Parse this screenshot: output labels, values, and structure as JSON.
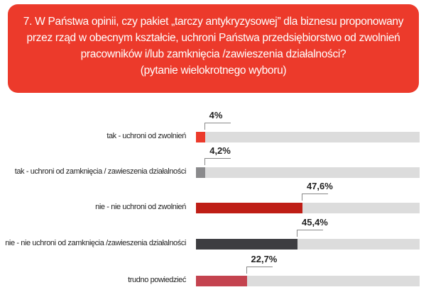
{
  "header": {
    "lines": [
      "7. W Państwa opinii, czy pakiet „tarczy antykryzysowej” dla biznesu proponowany",
      "przez rząd w obecnym kształcie, uchroni Państwa przedsiębiorstwo od zwolnień",
      "pracowników i/lub zamknięcia /zawieszenia działalności?",
      "(pytanie wielokrotnego wyboru)"
    ]
  },
  "chart_data": {
    "type": "bar",
    "orientation": "horizontal",
    "title": "7. W Państwa opinii, czy pakiet „tarczy antykryzysowej” dla biznesu proponowany przez rząd w obecnym kształcie, uchroni Państwa przedsiębiorstwo od zwolnień pracowników i/lub zamknięcia /zawieszenia działalności? (pytanie wielokrotnego wyboru)",
    "categories": [
      "tak - uchroni od zwolnień",
      "tak - uchroni od zamknięcia / zawieszenia działalności",
      "nie - nie uchroni od zwolnień",
      "nie - nie uchroni od zamknięcia /zawieszenia działalności",
      "trudno powiedzieć"
    ],
    "values": [
      4,
      4.2,
      47.6,
      45.4,
      22.7
    ],
    "value_labels": [
      "4%",
      "4,2%",
      "47,6%",
      "45,4%",
      "22,7%"
    ],
    "colors": [
      "#ec3a2b",
      "#8a8a8c",
      "#bf1e16",
      "#3d3d41",
      "#c4434f"
    ],
    "xlim": [
      0,
      100
    ],
    "grid": false
  }
}
